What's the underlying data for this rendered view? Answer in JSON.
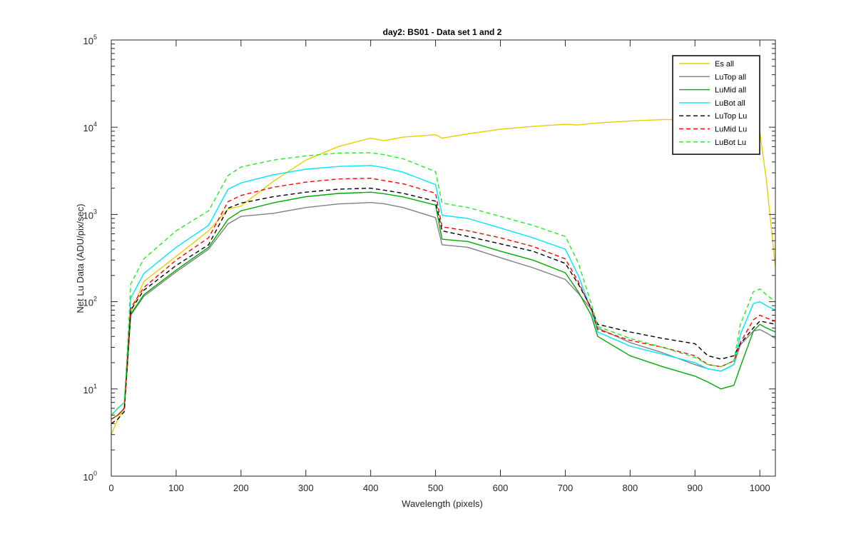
{
  "chart_data": {
    "type": "line",
    "title": "day2: BS01 - Data set 1 and 2",
    "xlabel": "Wavelength (pixels)",
    "ylabel": "Net Lu Data (ADU/pix/sec)",
    "xlim": [
      0,
      1024
    ],
    "ylim": [
      1,
      100000
    ],
    "yscale": "log",
    "grid": false,
    "legend_position": "top-right",
    "x_ticks": [
      "0",
      "100",
      "200",
      "300",
      "400",
      "500",
      "600",
      "700",
      "800",
      "900",
      "1000"
    ],
    "y_ticks": [
      {
        "base": "10",
        "exp": "0"
      },
      {
        "base": "10",
        "exp": "1"
      },
      {
        "base": "10",
        "exp": "2"
      },
      {
        "base": "10",
        "exp": "3"
      },
      {
        "base": "10",
        "exp": "4"
      },
      {
        "base": "10",
        "exp": "5"
      }
    ],
    "x": [
      0,
      10,
      20,
      25,
      30,
      50,
      100,
      150,
      180,
      200,
      250,
      300,
      350,
      400,
      420,
      450,
      500,
      510,
      550,
      600,
      650,
      700,
      720,
      740,
      750,
      800,
      850,
      900,
      920,
      940,
      960,
      970,
      990,
      1000,
      1010,
      1024
    ],
    "series": [
      {
        "name": "Es  all",
        "color": "#e6d000",
        "dash": "solid",
        "values": [
          3.0,
          4.5,
          6,
          20,
          75,
          170,
          330,
          650,
          1150,
          1250,
          2400,
          4200,
          6000,
          7500,
          7000,
          7700,
          8200,
          7500,
          8400,
          9500,
          10200,
          10800,
          10600,
          11000,
          11200,
          11800,
          12200,
          12300,
          12300,
          12200,
          11500,
          10800,
          10000,
          8800,
          2500,
          250
        ]
      },
      {
        "name": "LuTop  all",
        "color": "#808080",
        "dash": "solid",
        "values": [
          4.5,
          5,
          6,
          20,
          70,
          115,
          220,
          400,
          780,
          950,
          1030,
          1200,
          1320,
          1370,
          1330,
          1200,
          920,
          450,
          420,
          320,
          245,
          180,
          125,
          82,
          50,
          34,
          26,
          19,
          17,
          16,
          19,
          32,
          46,
          48,
          44,
          38
        ]
      },
      {
        "name": "LuMid  all",
        "color": "#00aa00",
        "dash": "solid",
        "values": [
          4.5,
          5,
          6,
          20,
          72,
          120,
          230,
          420,
          880,
          1100,
          1360,
          1600,
          1740,
          1800,
          1730,
          1590,
          1280,
          520,
          490,
          380,
          300,
          215,
          130,
          70,
          40,
          24,
          18,
          14,
          12,
          10,
          11,
          18,
          46,
          55,
          50,
          45
        ]
      },
      {
        "name": "LuBot  all",
        "color": "#00e6ff",
        "dash": "solid",
        "values": [
          5,
          6,
          7,
          25,
          110,
          210,
          420,
          750,
          1950,
          2300,
          2850,
          3300,
          3550,
          3650,
          3450,
          3050,
          2200,
          980,
          900,
          700,
          540,
          400,
          200,
          80,
          45,
          31,
          25,
          20,
          17,
          16,
          19,
          42,
          95,
          100,
          90,
          80
        ]
      },
      {
        "name": "LuTop  Lu",
        "color": "#000000",
        "dash": "dashed",
        "values": [
          4,
          4.5,
          5.5,
          20,
          80,
          135,
          260,
          450,
          1180,
          1350,
          1600,
          1800,
          1950,
          2000,
          1900,
          1750,
          1420,
          650,
          560,
          460,
          380,
          275,
          160,
          85,
          55,
          45,
          38,
          33,
          24,
          22,
          24,
          33,
          50,
          60,
          58,
          55
        ]
      },
      {
        "name": "LuMid  Lu",
        "color": "#ff0000",
        "dash": "dashed",
        "values": [
          4.5,
          5,
          6,
          22,
          85,
          145,
          300,
          540,
          1400,
          1650,
          2050,
          2350,
          2550,
          2600,
          2450,
          2250,
          1750,
          720,
          650,
          540,
          430,
          310,
          170,
          82,
          48,
          36,
          30,
          24,
          19,
          18,
          21,
          34,
          62,
          70,
          65,
          60
        ]
      },
      {
        "name": "LuBot  Lu",
        "color": "#22ee22",
        "dash": "dashed",
        "values": [
          5,
          6,
          7,
          30,
          160,
          310,
          650,
          1100,
          2800,
          3500,
          4200,
          4700,
          5050,
          5100,
          4850,
          4350,
          3100,
          1350,
          1200,
          950,
          750,
          560,
          280,
          95,
          52,
          38,
          30,
          23,
          19,
          18,
          21,
          55,
          130,
          140,
          120,
          100
        ]
      }
    ]
  }
}
